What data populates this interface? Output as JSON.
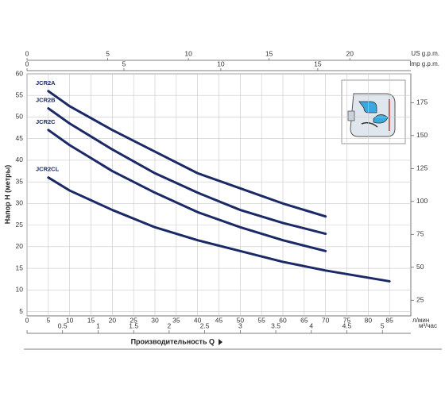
{
  "chart_data": {
    "type": "line",
    "x_label": "Производительность Q",
    "y_label": "Напор H (метры)",
    "x_unit": "л/мин",
    "xlim": [
      0,
      90
    ],
    "xticks": [
      0,
      5,
      10,
      15,
      20,
      25,
      30,
      35,
      40,
      45,
      50,
      55,
      60,
      65,
      70,
      75,
      80,
      85
    ],
    "ylim": [
      4,
      60
    ],
    "yticks": [
      5,
      10,
      15,
      20,
      25,
      30,
      35,
      40,
      45,
      50,
      55,
      60
    ],
    "y2lim": [
      13.1,
      196.9
    ],
    "y2ticks": [
      25,
      50,
      75,
      100,
      125,
      150,
      175
    ],
    "grid": true,
    "top_axes": [
      {
        "label": "US g.p.m.",
        "xlim": [
          0,
          23.78
        ],
        "xticks": [
          0,
          5,
          10,
          15,
          20
        ]
      },
      {
        "label": "Imp g.p.m.",
        "xlim": [
          0,
          19.8
        ],
        "xticks": [
          0,
          5,
          10,
          15
        ]
      }
    ],
    "bottom_axis2": {
      "label": "м³/час",
      "xlim": [
        0,
        5.4
      ],
      "xticks": [
        0,
        0.5,
        1,
        1.5,
        2,
        2.5,
        3,
        3.5,
        4,
        4.5,
        5
      ]
    },
    "series": [
      {
        "name": "JCR2A",
        "color": "#1b2a66",
        "x": [
          5,
          10,
          20,
          30,
          40,
          50,
          60,
          70
        ],
        "values": [
          56,
          52.5,
          47,
          42,
          37,
          33.5,
          30,
          27
        ]
      },
      {
        "name": "JCR2B",
        "color": "#1b2a66",
        "x": [
          5,
          10,
          20,
          30,
          40,
          50,
          60,
          70
        ],
        "values": [
          52,
          48.5,
          42.5,
          37,
          32.5,
          28.5,
          25.5,
          23
        ]
      },
      {
        "name": "JCR2C",
        "color": "#1b2a66",
        "x": [
          5,
          10,
          20,
          30,
          40,
          50,
          60,
          70
        ],
        "values": [
          47,
          43.5,
          37.5,
          32.5,
          28,
          24.5,
          21.5,
          19
        ]
      },
      {
        "name": "JCR2CL",
        "color": "#1b2a66",
        "x": [
          5,
          10,
          20,
          30,
          40,
          50,
          60,
          70,
          85
        ],
        "values": [
          36,
          33,
          28.5,
          24.5,
          21.5,
          19,
          16.5,
          14.5,
          12
        ]
      }
    ]
  }
}
